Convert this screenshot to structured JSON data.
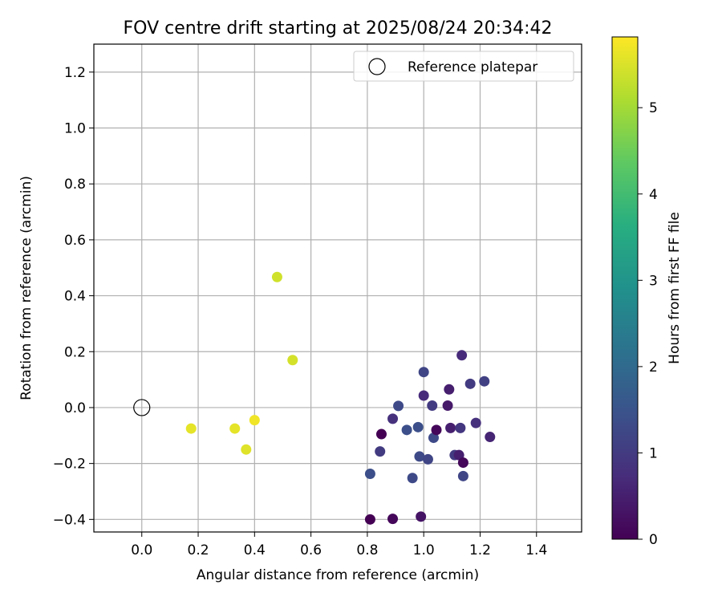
{
  "chart_data": {
    "type": "scatter",
    "title": "FOV centre drift starting at 2025/08/24 20:34:42",
    "xlabel": "Angular distance from reference (arcmin)",
    "ylabel": "Rotation from reference (arcmin)",
    "xlim": [
      -0.17,
      1.56
    ],
    "ylim": [
      -0.445,
      1.3
    ],
    "xticks": [
      0.0,
      0.2,
      0.4,
      0.6,
      0.8,
      1.0,
      1.2,
      1.4
    ],
    "yticks": [
      -0.4,
      -0.2,
      0.0,
      0.2,
      0.4,
      0.6,
      0.8,
      1.0,
      1.2
    ],
    "xtick_labels": [
      "0.0",
      "0.2",
      "0.4",
      "0.6",
      "0.8",
      "1.0",
      "1.2",
      "1.4"
    ],
    "ytick_labels": [
      "−0.4",
      "−0.2",
      "0.0",
      "0.2",
      "0.4",
      "0.6",
      "0.8",
      "1.0",
      "1.2"
    ],
    "grid": true,
    "colormap": "viridis",
    "colorbar": {
      "label": "Hours from first FF file",
      "range": [
        0,
        5.82
      ],
      "ticks": [
        0,
        1,
        2,
        3,
        4,
        5
      ],
      "tick_labels": [
        "0",
        "1",
        "2",
        "3",
        "4",
        "5"
      ]
    },
    "reference": {
      "x": 0.0,
      "y": 0.0,
      "label": "Reference platepar",
      "marker": "open-circle"
    },
    "legend": {
      "position": "top-right",
      "entries": [
        "Reference platepar"
      ]
    },
    "points": [
      {
        "x": 0.175,
        "y": -0.075,
        "hours": 5.6
      },
      {
        "x": 0.33,
        "y": -0.075,
        "hours": 5.6
      },
      {
        "x": 0.37,
        "y": -0.15,
        "hours": 5.55
      },
      {
        "x": 0.4,
        "y": -0.045,
        "hours": 5.7
      },
      {
        "x": 0.48,
        "y": 0.467,
        "hours": 5.4
      },
      {
        "x": 0.535,
        "y": 0.17,
        "hours": 5.45
      },
      {
        "x": 0.81,
        "y": -0.237,
        "hours": 1.4
      },
      {
        "x": 0.81,
        "y": -0.4,
        "hours": 0.0
      },
      {
        "x": 0.845,
        "y": -0.157,
        "hours": 1.0
      },
      {
        "x": 0.85,
        "y": -0.095,
        "hours": 0.0
      },
      {
        "x": 0.89,
        "y": -0.04,
        "hours": 0.8
      },
      {
        "x": 0.89,
        "y": -0.398,
        "hours": 0.1
      },
      {
        "x": 0.91,
        "y": 0.006,
        "hours": 1.3
      },
      {
        "x": 0.94,
        "y": -0.08,
        "hours": 1.4
      },
      {
        "x": 0.96,
        "y": -0.252,
        "hours": 1.3
      },
      {
        "x": 0.98,
        "y": -0.07,
        "hours": 1.4
      },
      {
        "x": 0.985,
        "y": -0.175,
        "hours": 1.3
      },
      {
        "x": 0.99,
        "y": -0.39,
        "hours": 0.3
      },
      {
        "x": 1.0,
        "y": 0.127,
        "hours": 1.2
      },
      {
        "x": 1.0,
        "y": 0.043,
        "hours": 0.7
      },
      {
        "x": 1.015,
        "y": -0.185,
        "hours": 1.2
      },
      {
        "x": 1.03,
        "y": 0.007,
        "hours": 1.0
      },
      {
        "x": 1.035,
        "y": -0.108,
        "hours": 1.3
      },
      {
        "x": 1.045,
        "y": -0.08,
        "hours": 0.1
      },
      {
        "x": 1.085,
        "y": 0.007,
        "hours": 0.4
      },
      {
        "x": 1.09,
        "y": 0.065,
        "hours": 0.5
      },
      {
        "x": 1.095,
        "y": -0.073,
        "hours": 0.5
      },
      {
        "x": 1.11,
        "y": -0.17,
        "hours": 1.0
      },
      {
        "x": 1.125,
        "y": -0.17,
        "hours": 0.5
      },
      {
        "x": 1.13,
        "y": -0.073,
        "hours": 0.9
      },
      {
        "x": 1.135,
        "y": 0.187,
        "hours": 0.7
      },
      {
        "x": 1.14,
        "y": -0.197,
        "hours": 0.1
      },
      {
        "x": 1.14,
        "y": -0.245,
        "hours": 1.2
      },
      {
        "x": 1.165,
        "y": 0.085,
        "hours": 1.0
      },
      {
        "x": 1.185,
        "y": -0.055,
        "hours": 0.8
      },
      {
        "x": 1.215,
        "y": 0.094,
        "hours": 1.1
      },
      {
        "x": 1.235,
        "y": -0.105,
        "hours": 0.6
      }
    ]
  }
}
